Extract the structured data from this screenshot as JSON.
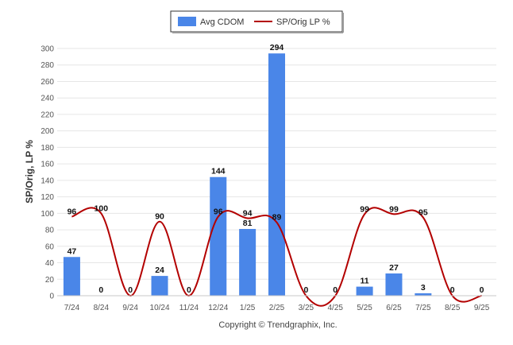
{
  "chart_data": {
    "type": "bar",
    "categories": [
      "7/24",
      "8/24",
      "9/24",
      "10/24",
      "11/24",
      "12/24",
      "1/25",
      "2/25",
      "3/25",
      "4/25",
      "5/25",
      "6/25",
      "7/25",
      "8/25",
      "9/25"
    ],
    "series": [
      {
        "name": "Avg CDOM",
        "type": "bar",
        "color": "#4a86e8",
        "values": [
          47,
          0,
          0,
          24,
          0,
          144,
          81,
          294,
          0,
          0,
          11,
          27,
          3,
          0,
          0
        ]
      },
      {
        "name": "SP/Orig LP %",
        "type": "line",
        "color": "#b30000",
        "smooth": true,
        "values": [
          96,
          100,
          0,
          90,
          0,
          96,
          94,
          89,
          0,
          0,
          99,
          99,
          95,
          0,
          0
        ]
      }
    ],
    "bar_labels": [
      "47",
      "0",
      "0",
      "24",
      "0",
      "144",
      "81",
      "294",
      "0",
      "0",
      "11",
      "27",
      "3",
      "0",
      "0"
    ],
    "line_labels": [
      "96",
      "100",
      "",
      "90",
      "",
      "96",
      "94",
      "89",
      "",
      "",
      "99",
      "99",
      "95",
      "",
      ""
    ],
    "title": "",
    "xlabel": "",
    "ylabel": "SP/Orig, LP %",
    "ylim": [
      0,
      300
    ],
    "yticks": [
      "0",
      "20",
      "40",
      "60",
      "80",
      "100",
      "120",
      "140",
      "160",
      "180",
      "200",
      "220",
      "240",
      "260",
      "280",
      "300"
    ],
    "grid": true,
    "legend_position": "top-center"
  },
  "legend": {
    "bar_label": "Avg CDOM",
    "line_label": "SP/Orig LP %"
  },
  "footer": {
    "copyright": "Copyright © Trendgraphix, Inc."
  }
}
